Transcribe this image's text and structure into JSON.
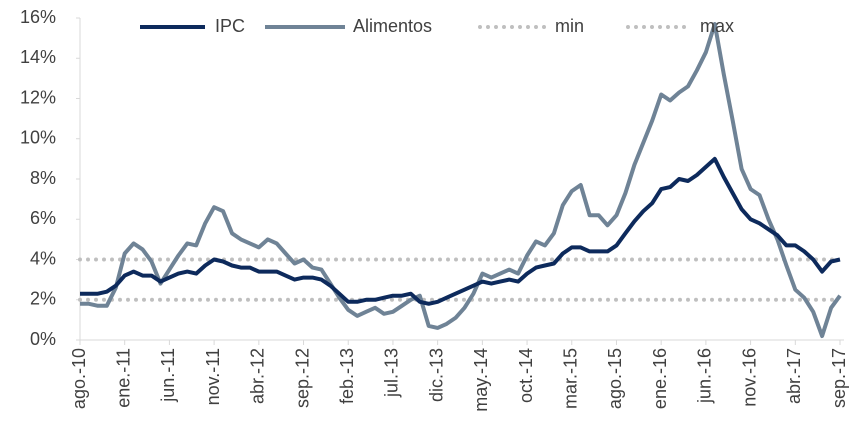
{
  "chart_data": {
    "type": "line",
    "categories": [
      "ago.-10",
      null,
      null,
      null,
      null,
      "ene.-11",
      null,
      null,
      null,
      null,
      "jun.-11",
      null,
      null,
      null,
      null,
      "nov.-11",
      null,
      null,
      null,
      null,
      "abr.-12",
      null,
      null,
      null,
      null,
      "sep.-12",
      null,
      null,
      null,
      null,
      "feb.-13",
      null,
      null,
      null,
      null,
      "jul.-13",
      null,
      null,
      null,
      null,
      "dic.-13",
      null,
      null,
      null,
      null,
      "may.-14",
      null,
      null,
      null,
      null,
      "oct.-14",
      null,
      null,
      null,
      null,
      "mar.-15",
      null,
      null,
      null,
      null,
      "ago.-15",
      null,
      null,
      null,
      null,
      "ene.-16",
      null,
      null,
      null,
      null,
      "jun.-16",
      null,
      null,
      null,
      null,
      "nov.-16",
      null,
      null,
      null,
      null,
      "abr.-17",
      null,
      null,
      null,
      null,
      "sep.-17"
    ],
    "series": [
      {
        "name": "IPC",
        "color": "#0d2a5c",
        "style": "solid",
        "values": [
          2.3,
          2.3,
          2.3,
          2.4,
          2.7,
          3.2,
          3.4,
          3.2,
          3.2,
          2.9,
          3.1,
          3.3,
          3.4,
          3.3,
          3.7,
          4.0,
          3.9,
          3.7,
          3.6,
          3.6,
          3.4,
          3.4,
          3.4,
          3.2,
          3.0,
          3.1,
          3.1,
          3.0,
          2.7,
          2.3,
          1.9,
          1.9,
          2.0,
          2.0,
          2.1,
          2.2,
          2.2,
          2.3,
          1.9,
          1.8,
          1.9,
          2.1,
          2.3,
          2.5,
          2.7,
          2.9,
          2.8,
          2.9,
          3.0,
          2.9,
          3.3,
          3.6,
          3.7,
          3.8,
          4.3,
          4.6,
          4.6,
          4.4,
          4.4,
          4.4,
          4.7,
          5.3,
          5.9,
          6.4,
          6.8,
          7.5,
          7.6,
          8.0,
          7.9,
          8.2,
          8.6,
          9.0,
          8.1,
          7.3,
          6.5,
          6.0,
          5.8,
          5.5,
          5.2,
          4.7,
          4.7,
          4.4,
          4.0,
          3.4,
          3.9,
          4.0
        ]
      },
      {
        "name": "Alimentos",
        "color": "#6f8396",
        "style": "solid",
        "values": [
          1.8,
          1.8,
          1.7,
          1.7,
          2.6,
          4.3,
          4.8,
          4.5,
          3.9,
          2.8,
          3.5,
          4.2,
          4.8,
          4.7,
          5.8,
          6.6,
          6.4,
          5.3,
          5.0,
          4.8,
          4.6,
          5.0,
          4.8,
          4.3,
          3.8,
          4.0,
          3.6,
          3.5,
          2.8,
          2.1,
          1.5,
          1.2,
          1.4,
          1.6,
          1.3,
          1.4,
          1.7,
          2.0,
          2.2,
          0.7,
          0.6,
          0.8,
          1.1,
          1.6,
          2.3,
          3.3,
          3.1,
          3.3,
          3.5,
          3.3,
          4.2,
          4.9,
          4.7,
          5.3,
          6.7,
          7.4,
          7.7,
          6.2,
          6.2,
          5.7,
          6.2,
          7.3,
          8.7,
          9.8,
          10.9,
          12.2,
          11.9,
          12.3,
          12.6,
          13.4,
          14.3,
          15.7,
          13.2,
          10.9,
          8.5,
          7.5,
          7.2,
          6.0,
          5.0,
          3.7,
          2.5,
          2.1,
          1.4,
          0.2,
          1.6,
          2.2
        ]
      },
      {
        "name": "min",
        "color": "#bfbfbf",
        "style": "dotted",
        "values": [
          2,
          2,
          2,
          2,
          2,
          2,
          2,
          2,
          2,
          2,
          2,
          2,
          2,
          2,
          2,
          2,
          2,
          2,
          2,
          2,
          2,
          2,
          2,
          2,
          2,
          2,
          2,
          2,
          2,
          2,
          2,
          2,
          2,
          2,
          2,
          2,
          2,
          2,
          2,
          2,
          2,
          2,
          2,
          2,
          2,
          2,
          2,
          2,
          2,
          2,
          2,
          2,
          2,
          2,
          2,
          2,
          2,
          2,
          2,
          2,
          2,
          2,
          2,
          2,
          2,
          2,
          2,
          2,
          2,
          2,
          2,
          2,
          2,
          2,
          2,
          2,
          2,
          2,
          2,
          2,
          2,
          2,
          2,
          2,
          2,
          2
        ]
      },
      {
        "name": "max",
        "color": "#bfbfbf",
        "style": "dotted",
        "values": [
          4,
          4,
          4,
          4,
          4,
          4,
          4,
          4,
          4,
          4,
          4,
          4,
          4,
          4,
          4,
          4,
          4,
          4,
          4,
          4,
          4,
          4,
          4,
          4,
          4,
          4,
          4,
          4,
          4,
          4,
          4,
          4,
          4,
          4,
          4,
          4,
          4,
          4,
          4,
          4,
          4,
          4,
          4,
          4,
          4,
          4,
          4,
          4,
          4,
          4,
          4,
          4,
          4,
          4,
          4,
          4,
          4,
          4,
          4,
          4,
          4,
          4,
          4,
          4,
          4,
          4,
          4,
          4,
          4,
          4,
          4,
          4,
          4,
          4,
          4,
          4,
          4,
          4,
          4,
          4,
          4,
          4,
          4,
          4,
          4,
          4
        ]
      }
    ],
    "ylim": [
      0,
      16
    ],
    "yticks": [
      {
        "value": 0,
        "label": "0%"
      },
      {
        "value": 2,
        "label": "2%"
      },
      {
        "value": 4,
        "label": "4%"
      },
      {
        "value": 6,
        "label": "6%"
      },
      {
        "value": 8,
        "label": "8%"
      },
      {
        "value": 10,
        "label": "10%"
      },
      {
        "value": 12,
        "label": "12%"
      },
      {
        "value": 14,
        "label": "14%"
      },
      {
        "value": 16,
        "label": "16%"
      }
    ],
    "grid": false,
    "legend": "top"
  }
}
